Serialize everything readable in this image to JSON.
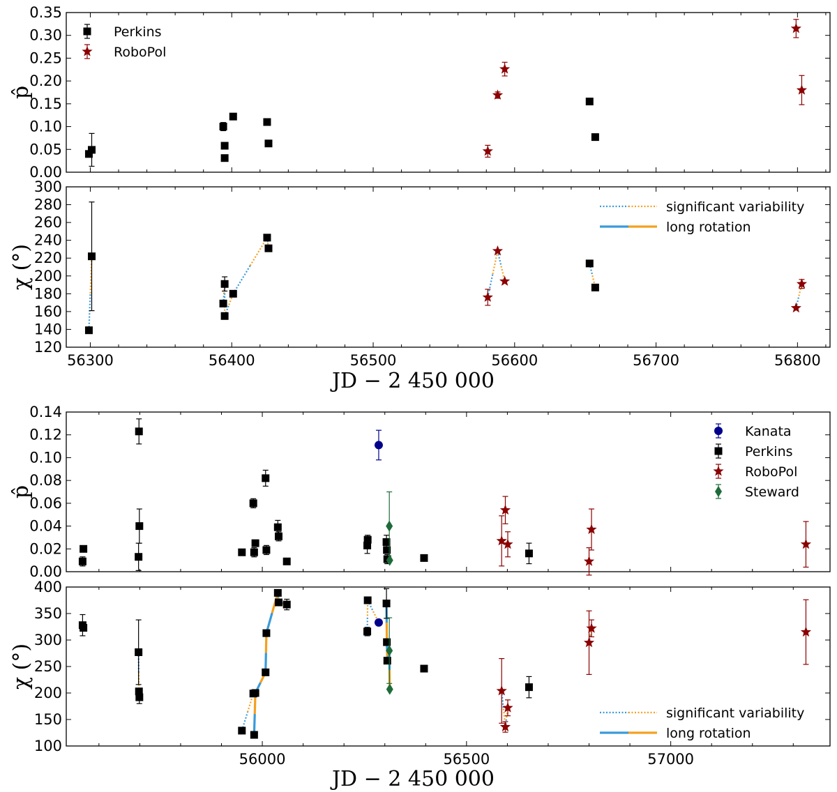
{
  "chart_data": [
    {
      "type": "scatter",
      "panel": "top-p",
      "ylabel": "p̂",
      "xlim": [
        56283,
        56823
      ],
      "ylim": [
        0,
        0.35
      ],
      "yticks": [
        "0.00",
        "0.05",
        "0.10",
        "0.15",
        "0.20",
        "0.25",
        "0.30",
        "0.35"
      ],
      "legend": {
        "placement": "top-left",
        "entries": [
          "Perkins",
          "RoboPol"
        ]
      },
      "series": [
        {
          "name": "Perkins",
          "marker": "square",
          "color": "#000000",
          "points": [
            [
              56299,
              0.04,
              0
            ],
            [
              56301,
              0.049,
              0.036
            ],
            [
              56394,
              0.1,
              0.009
            ],
            [
              56395,
              0.058,
              0.005
            ],
            [
              56395,
              0.031,
              0.005
            ],
            [
              56401,
              0.122,
              0
            ],
            [
              56425,
              0.11,
              0
            ],
            [
              56426,
              0.063,
              0
            ],
            [
              56653,
              0.155,
              0
            ],
            [
              56657,
              0.077,
              0
            ]
          ]
        },
        {
          "name": "RoboPol",
          "marker": "star",
          "color": "#8b0000",
          "points": [
            [
              56581,
              0.046,
              0.013
            ],
            [
              56588,
              0.169,
              0.007
            ],
            [
              56593,
              0.226,
              0.015
            ],
            [
              56799,
              0.315,
              0.02
            ],
            [
              56803,
              0.18,
              0.032
            ]
          ]
        }
      ]
    },
    {
      "type": "scatter",
      "panel": "top-chi",
      "ylabel": "χ (°)",
      "xlabel": "JD − 2 450 000",
      "xlim": [
        56283,
        56823
      ],
      "ylim": [
        120,
        300
      ],
      "yticks": [
        "120",
        "140",
        "160",
        "180",
        "200",
        "220",
        "240",
        "260",
        "280",
        "300"
      ],
      "xticks": [
        "56300",
        "56400",
        "56500",
        "56600",
        "56700",
        "56800"
      ],
      "legend": {
        "placement": "top-right",
        "entries": [
          "significant variability",
          "long rotation"
        ]
      },
      "series": [
        {
          "name": "Perkins",
          "marker": "square",
          "color": "#000000",
          "points": [
            [
              56299,
              139,
              0
            ],
            [
              56301,
              222,
              61
            ],
            [
              56394,
              169,
              0
            ],
            [
              56395,
              191,
              8
            ],
            [
              56395,
              155,
              0
            ],
            [
              56401,
              180,
              0
            ],
            [
              56425,
              243,
              0
            ],
            [
              56426,
              231,
              0
            ],
            [
              56653,
              214,
              0
            ],
            [
              56657,
              187,
              0
            ]
          ]
        },
        {
          "name": "RoboPol",
          "marker": "star",
          "color": "#8b0000",
          "points": [
            [
              56581,
              176,
              9
            ],
            [
              56588,
              228,
              0
            ],
            [
              56593,
              194,
              0
            ],
            [
              56799,
              164,
              0
            ],
            [
              56803,
              191,
              5
            ]
          ]
        }
      ],
      "variability_segments": [
        [
          [
            56299,
            139
          ],
          [
            56301,
            222
          ]
        ],
        [
          [
            56394,
            169
          ],
          [
            56395,
            191
          ]
        ],
        [
          [
            56395,
            191
          ],
          [
            56395,
            155
          ]
        ],
        [
          [
            56395,
            155
          ],
          [
            56401,
            180
          ]
        ],
        [
          [
            56401,
            180
          ],
          [
            56425,
            243
          ]
        ],
        [
          [
            56425,
            243
          ],
          [
            56426,
            231
          ]
        ],
        [
          [
            56581,
            176
          ],
          [
            56588,
            228
          ]
        ],
        [
          [
            56588,
            228
          ],
          [
            56593,
            194
          ]
        ],
        [
          [
            56653,
            214
          ],
          [
            56657,
            187
          ]
        ],
        [
          [
            56799,
            164
          ],
          [
            56803,
            191
          ]
        ]
      ],
      "rotation_segments": []
    },
    {
      "type": "scatter",
      "panel": "bottom-p",
      "ylabel": "p̂",
      "xlim": [
        55520,
        57390
      ],
      "ylim": [
        0,
        0.14
      ],
      "yticks": [
        "0.00",
        "0.02",
        "0.04",
        "0.06",
        "0.08",
        "0.10",
        "0.12",
        "0.14"
      ],
      "legend": {
        "placement": "top-right",
        "entries": [
          "Kanata",
          "Perkins",
          "RoboPol",
          "Steward"
        ]
      },
      "series": [
        {
          "name": "Kanata",
          "marker": "circle",
          "color": "#00008b",
          "points": [
            [
              56285,
              0.111,
              0.013
            ]
          ]
        },
        {
          "name": "Perkins",
          "marker": "square",
          "color": "#000000",
          "points": [
            [
              55560,
              0.009,
              0.004
            ],
            [
              55562,
              0.02,
              0
            ],
            [
              55697,
              0.013,
              0.012
            ],
            [
              55698,
              0.123,
              0.011
            ],
            [
              55699,
              0.04,
              0.015
            ],
            [
              55950,
              0.017,
              0
            ],
            [
              55978,
              0.06,
              0.004
            ],
            [
              55980,
              0.017,
              0.004
            ],
            [
              55983,
              0.025,
              0
            ],
            [
              56008,
              0.082,
              0.007
            ],
            [
              56010,
              0.019,
              0.004
            ],
            [
              56038,
              0.039,
              0.006
            ],
            [
              56040,
              0.031,
              0.004
            ],
            [
              56060,
              0.009,
              0
            ],
            [
              56257,
              0.023,
              0.007
            ],
            [
              56258,
              0.028,
              0.004
            ],
            [
              56304,
              0.026,
              0.006
            ],
            [
              56305,
              0.019,
              0
            ],
            [
              56306,
              0.011,
              0.004
            ],
            [
              56396,
              0.012,
              0
            ],
            [
              56653,
              0.016,
              0.009
            ]
          ]
        },
        {
          "name": "RoboPol",
          "marker": "star",
          "color": "#8b0000",
          "points": [
            [
              56586,
              0.027,
              0.022
            ],
            [
              56595,
              0.054,
              0.012
            ],
            [
              56601,
              0.024,
              0.011
            ],
            [
              56800,
              0.009,
              0.012
            ],
            [
              56806,
              0.037,
              0.018
            ],
            [
              57331,
              0.024,
              0.02
            ]
          ]
        },
        {
          "name": "Steward",
          "marker": "diamond",
          "color": "#1e6b3a",
          "points": [
            [
              56311,
              0.04,
              0.03
            ],
            [
              56312,
              0.01,
              0
            ]
          ]
        }
      ]
    },
    {
      "type": "scatter",
      "panel": "bottom-chi",
      "ylabel": "χ (°)",
      "xlabel": "JD − 2 450 000",
      "xlim": [
        55520,
        57390
      ],
      "ylim": [
        100,
        400
      ],
      "yticks": [
        "100",
        "150",
        "200",
        "250",
        "300",
        "350",
        "400"
      ],
      "xticks": [
        "56000",
        "56500",
        "57000"
      ],
      "legend": {
        "placement": "bottom-right",
        "entries": [
          "significant variability",
          "long rotation"
        ]
      },
      "series": [
        {
          "name": "Kanata",
          "marker": "circle",
          "color": "#00008b",
          "points": [
            [
              56285,
              333,
              0
            ]
          ]
        },
        {
          "name": "Perkins",
          "marker": "square",
          "color": "#000000",
          "points": [
            [
              55560,
              328,
              20
            ],
            [
              55562,
              323,
              0
            ],
            [
              55697,
              277,
              61
            ],
            [
              55698,
              203,
              0
            ],
            [
              55699,
              192,
              12
            ],
            [
              55950,
              129,
              0
            ],
            [
              55978,
              199,
              0
            ],
            [
              55980,
              121,
              0
            ],
            [
              55983,
              200,
              0
            ],
            [
              56008,
              239,
              0
            ],
            [
              56010,
              313,
              0
            ],
            [
              56038,
              389,
              0
            ],
            [
              56040,
              371,
              0
            ],
            [
              56060,
              367,
              10
            ],
            [
              56257,
              316,
              8
            ],
            [
              56258,
              375,
              0
            ],
            [
              56304,
              369,
              28
            ],
            [
              56305,
              296,
              0
            ],
            [
              56306,
              261,
              0
            ],
            [
              56396,
              246,
              0
            ],
            [
              56653,
              211,
              20
            ]
          ]
        },
        {
          "name": "RoboPol",
          "marker": "star",
          "color": "#8b0000",
          "points": [
            [
              56586,
              204,
              61
            ],
            [
              56595,
              136,
              10
            ],
            [
              56601,
              172,
              15
            ],
            [
              56800,
              295,
              60
            ],
            [
              56806,
              322,
              16
            ],
            [
              57331,
              315,
              61
            ]
          ]
        },
        {
          "name": "Steward",
          "marker": "diamond",
          "color": "#1e6b3a",
          "points": [
            [
              56311,
              280,
              62
            ],
            [
              56312,
              207,
              0
            ]
          ]
        }
      ],
      "variability_segments": [
        [
          [
            55697,
            277
          ],
          [
            55698,
            203
          ]
        ],
        [
          [
            55950,
            129
          ],
          [
            55978,
            199
          ]
        ],
        [
          [
            56257,
            316
          ],
          [
            56258,
            375
          ]
        ],
        [
          [
            56258,
            375
          ],
          [
            56285,
            333
          ]
        ],
        [
          [
            56586,
            204
          ],
          [
            56595,
            136
          ]
        ],
        [
          [
            56595,
            136
          ],
          [
            56601,
            172
          ]
        ],
        [
          [
            56800,
            295
          ],
          [
            56806,
            322
          ]
        ]
      ],
      "rotation_segments": [
        [
          [
            55980,
            121
          ],
          [
            55983,
            200
          ]
        ],
        [
          [
            55983,
            200
          ],
          [
            56008,
            239
          ]
        ],
        [
          [
            56008,
            239
          ],
          [
            56010,
            313
          ]
        ],
        [
          [
            56010,
            313
          ],
          [
            56038,
            389
          ]
        ],
        [
          [
            56038,
            389
          ],
          [
            56040,
            371
          ]
        ],
        [
          [
            56040,
            371
          ],
          [
            56060,
            367
          ]
        ],
        [
          [
            56304,
            369
          ],
          [
            56305,
            296
          ]
        ],
        [
          [
            56305,
            296
          ],
          [
            56306,
            261
          ]
        ],
        [
          [
            56306,
            261
          ],
          [
            56311,
            280
          ]
        ],
        [
          [
            56311,
            280
          ],
          [
            56312,
            207
          ]
        ]
      ]
    }
  ],
  "colors": {
    "variability_blue": "#3a9ad9",
    "variability_orange": "#f5a020",
    "rotation_blue": "#3a9ad9",
    "rotation_orange": "#f5a020"
  }
}
